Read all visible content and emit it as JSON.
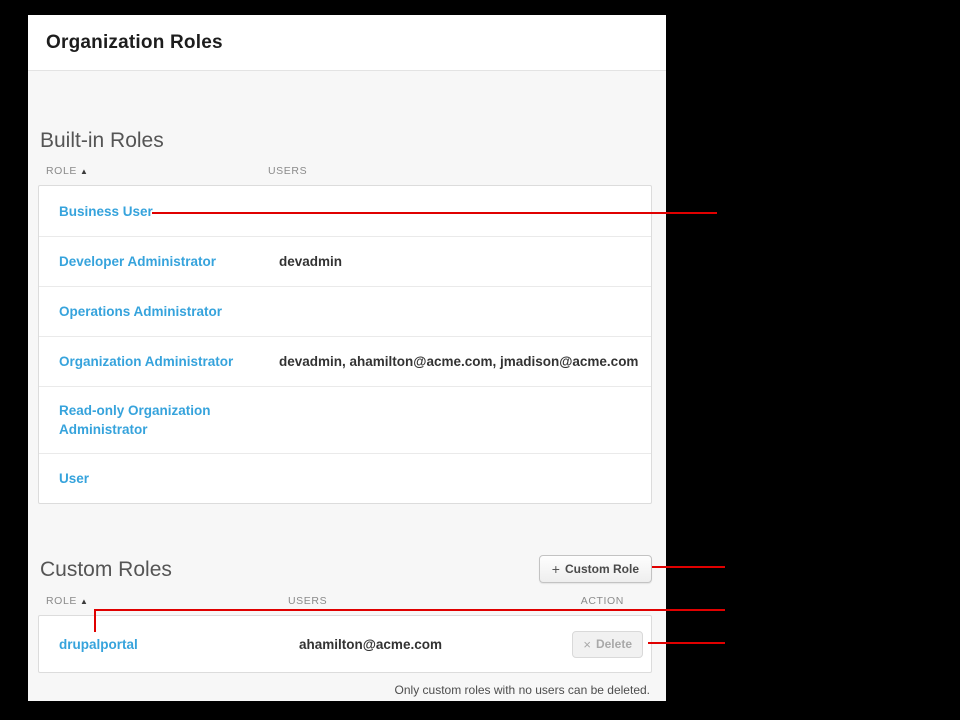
{
  "annotation_color": "#e00000",
  "link_color": "#36a3dc",
  "panel": {
    "title": "Organization Roles",
    "builtin": {
      "heading": "Built-in Roles",
      "columns": {
        "role": "ROLE",
        "users": "USERS",
        "sort_icon": "▲"
      },
      "rows": [
        {
          "role": "Business User",
          "users": ""
        },
        {
          "role": "Developer Administrator",
          "users": "devadmin"
        },
        {
          "role": "Operations Administrator",
          "users": ""
        },
        {
          "role": "Organization Administrator",
          "users": "devadmin, ahamilton@acme.com, jmadison@acme.com"
        },
        {
          "role": "Read-only Organization Administrator",
          "users": ""
        },
        {
          "role": "User",
          "users": ""
        }
      ]
    },
    "custom": {
      "heading": "Custom Roles",
      "add_button": {
        "icon": "+",
        "label": "Custom Role"
      },
      "columns": {
        "role": "ROLE",
        "users": "USERS",
        "action": "ACTION",
        "sort_icon": "▲"
      },
      "rows": [
        {
          "role": "drupalportal",
          "users": "ahamilton@acme.com",
          "action_icon": "×",
          "action_label": "Delete"
        }
      ],
      "footnote": "Only custom roles with no users can be deleted."
    }
  }
}
